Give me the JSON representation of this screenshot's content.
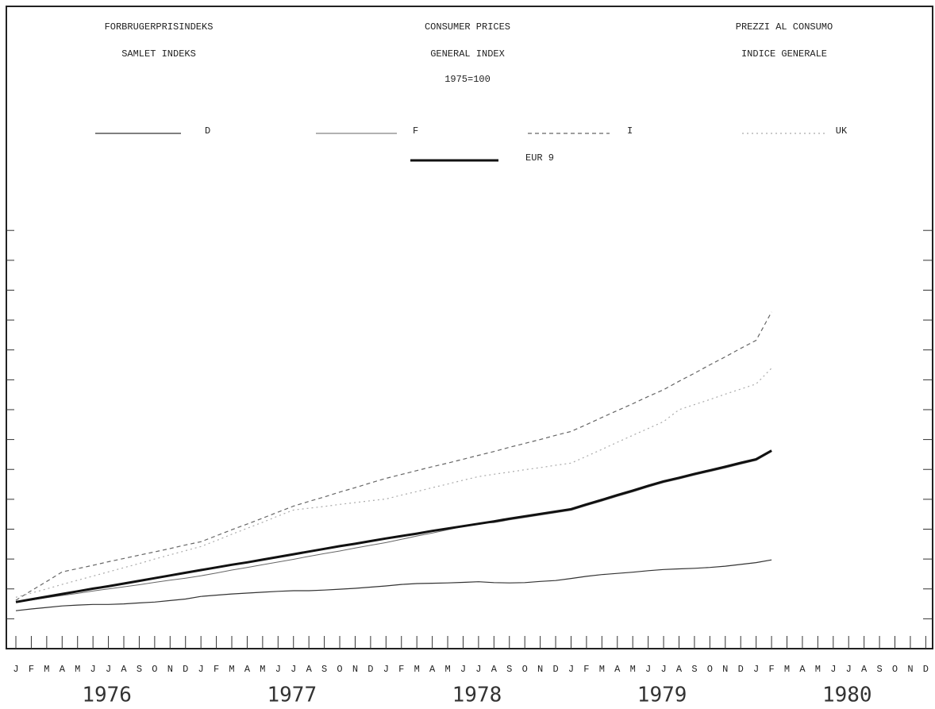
{
  "chart_data": {
    "type": "line",
    "header": [
      [
        "FORBRUGERPRISINDEKS",
        "SAMLET INDEKS"
      ],
      [
        "CONSUMER PRICES",
        "GENERAL INDEX",
        "1975=100"
      ],
      [
        "PREZZI AL CONSUMO",
        "INDICE GENERALE"
      ]
    ],
    "categories": [
      "J",
      "F",
      "M",
      "A",
      "M",
      "J",
      "J",
      "A",
      "S",
      "O",
      "N",
      "D",
      "J",
      "F",
      "M",
      "A",
      "M",
      "J",
      "J",
      "A",
      "S",
      "O",
      "N",
      "D",
      "J",
      "F",
      "M",
      "A",
      "M",
      "J",
      "J",
      "A",
      "S",
      "O",
      "N",
      "D",
      "J",
      "F",
      "M",
      "A",
      "M",
      "J",
      "J",
      "A",
      "S",
      "O",
      "N",
      "D",
      "J",
      "F",
      "M",
      "A",
      "M",
      "J",
      "J",
      "A",
      "S",
      "O",
      "N",
      "D"
    ],
    "years": [
      "1976",
      "1977",
      "1978",
      "1979",
      "1980"
    ],
    "ylim": [
      90,
      305
    ],
    "yticks": [
      100,
      110,
      120,
      130,
      140,
      150,
      160,
      170,
      180,
      190,
      200,
      210,
      220,
      230
    ],
    "series": [
      {
        "name": "D",
        "color": "#333333",
        "style": "solid",
        "width": 1.2,
        "values": [
          102.7,
          103.3,
          103.8,
          104.3,
          104.6,
          104.8,
          104.8,
          105.0,
          105.3,
          105.6,
          106.1,
          106.6,
          107.5,
          107.9,
          108.3,
          108.6,
          108.9,
          109.2,
          109.4,
          109.4,
          109.6,
          109.9,
          110.2,
          110.6,
          111.0,
          111.5,
          111.8,
          111.9,
          112.0,
          112.2,
          112.4,
          112.1,
          112.0,
          112.1,
          112.5,
          112.8,
          113.5,
          114.2,
          114.8,
          115.2,
          115.6,
          116.1,
          116.5,
          116.7,
          116.9,
          117.2,
          117.6,
          118.2,
          118.8,
          119.7,
          null,
          null,
          null,
          null,
          null,
          null,
          null,
          null,
          null,
          null
        ]
      },
      {
        "name": "F",
        "color": "#666666",
        "style": "solid",
        "width": 1,
        "values": [
          105.6,
          106.3,
          107.1,
          107.8,
          108.5,
          109.3,
          110.0,
          110.7,
          111.4,
          112.2,
          112.9,
          113.6,
          114.4,
          115.3,
          116.3,
          117.2,
          118.1,
          119.0,
          119.9,
          120.9,
          121.8,
          122.7,
          123.7,
          124.6,
          125.5,
          126.6,
          127.7,
          128.7,
          129.8,
          130.9,
          132.0,
          132.2,
          133.1,
          133.9,
          134.7,
          135.5,
          136.3,
          137.9,
          139.4,
          141.0,
          142.5,
          144.1,
          145.6,
          146.8,
          148.1,
          149.3,
          150.5,
          151.8,
          153.0,
          155.9,
          null,
          null,
          null,
          null,
          null,
          null,
          null,
          null,
          null,
          null
        ]
      },
      {
        "name": "I",
        "color": "#666666",
        "style": "dashed",
        "width": 1.2,
        "values": [
          106.2,
          109.4,
          112.5,
          115.7,
          116.8,
          117.9,
          119.1,
          120.2,
          121.3,
          122.4,
          123.5,
          124.7,
          125.8,
          127.8,
          129.8,
          131.7,
          133.7,
          135.7,
          137.7,
          139.3,
          140.8,
          142.4,
          143.9,
          145.5,
          147.0,
          148.3,
          149.6,
          150.9,
          152.1,
          153.4,
          154.7,
          156.0,
          157.4,
          158.7,
          160.0,
          161.4,
          162.7,
          165.0,
          167.4,
          169.7,
          172.0,
          174.4,
          176.7,
          179.5,
          182.2,
          185.0,
          187.7,
          190.5,
          193.2,
          202.7,
          null,
          null,
          null,
          null,
          null,
          null,
          null,
          null,
          null,
          null
        ]
      },
      {
        "name": "UK",
        "color": "#aaaaaa",
        "style": "dotted",
        "width": 1.2,
        "values": [
          107.2,
          108.6,
          110.0,
          111.5,
          112.9,
          114.3,
          115.7,
          117.1,
          118.5,
          120.0,
          121.4,
          122.8,
          124.2,
          126.2,
          128.3,
          130.3,
          132.3,
          134.4,
          136.4,
          137.0,
          137.6,
          138.3,
          138.9,
          139.5,
          140.1,
          141.4,
          142.6,
          143.9,
          145.1,
          146.4,
          147.6,
          148.4,
          149.1,
          149.9,
          150.6,
          151.4,
          152.1,
          154.4,
          156.7,
          159.1,
          161.4,
          163.7,
          166.0,
          170.0,
          171.7,
          173.4,
          175.2,
          176.9,
          178.6,
          183.9,
          null,
          null,
          null,
          null,
          null,
          null,
          null,
          null,
          null,
          null
        ]
      },
      {
        "name": "EUR 9",
        "color": "#111111",
        "style": "solid",
        "width": 3,
        "values": [
          105.6,
          106.5,
          107.4,
          108.3,
          109.2,
          110.1,
          110.9,
          111.8,
          112.7,
          113.6,
          114.5,
          115.4,
          116.3,
          117.2,
          118.1,
          118.9,
          119.8,
          120.7,
          121.6,
          122.5,
          123.4,
          124.3,
          125.1,
          126.0,
          126.9,
          127.7,
          128.5,
          129.4,
          130.2,
          131.0,
          131.8,
          132.6,
          133.5,
          134.3,
          135.1,
          135.9,
          136.7,
          138.3,
          139.8,
          141.4,
          142.9,
          144.5,
          146.0,
          147.2,
          148.5,
          149.7,
          150.9,
          152.2,
          153.4,
          156.3,
          null,
          null,
          null,
          null,
          null,
          null,
          null,
          null,
          null,
          null
        ]
      }
    ]
  }
}
